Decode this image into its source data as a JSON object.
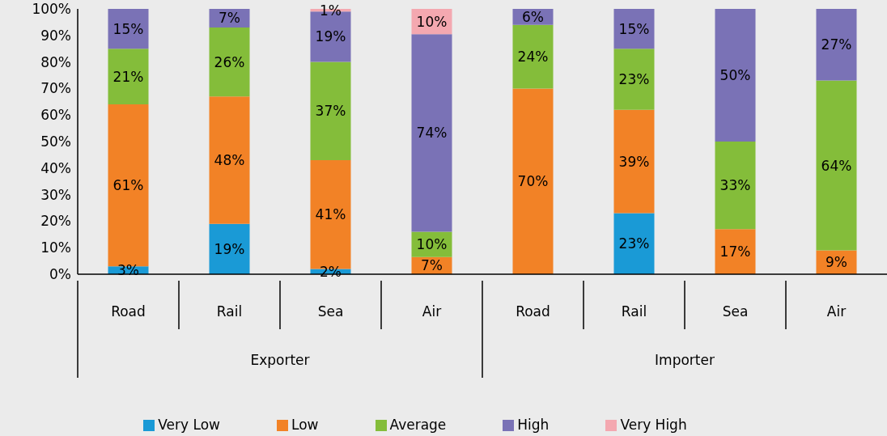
{
  "chart_data": {
    "type": "bar",
    "stacked": true,
    "categories": [
      "Road",
      "Rail",
      "Sea",
      "Air",
      "Road",
      "Rail",
      "Sea",
      "Air"
    ],
    "annotations": [
      "Exporter",
      "Importer"
    ],
    "series": [
      {
        "name": "Very Low",
        "color": "#1a9ad6",
        "values": [
          3,
          19,
          2,
          null,
          null,
          23,
          null,
          null
        ],
        "value_labels": [
          "3%",
          "19%",
          "2%",
          null,
          null,
          "23%",
          null,
          null
        ]
      },
      {
        "name": "Low",
        "color": "#f28226",
        "values": [
          61,
          48,
          41,
          6.5,
          70,
          39,
          17,
          9
        ],
        "value_labels": [
          "61%",
          "48%",
          "41%",
          "7%",
          "70%",
          "39%",
          "17%",
          "9%"
        ]
      },
      {
        "name": "Average",
        "color": "#84bd3a",
        "values": [
          21,
          26,
          37,
          9.5,
          24,
          23,
          33,
          64
        ],
        "value_labels": [
          "21%",
          "26%",
          "37%",
          "10%",
          "24%",
          "23%",
          "33%",
          "64%"
        ]
      },
      {
        "name": "High",
        "color": "#7a72b6",
        "values": [
          15,
          7,
          19,
          74.5,
          6,
          15,
          50,
          27
        ],
        "value_labels": [
          "15%",
          "7%",
          "19%",
          "74%",
          "6%",
          "15%",
          "50%",
          "27%"
        ]
      },
      {
        "name": "Very High",
        "color": "#f4a8b0",
        "values": [
          null,
          null,
          1,
          9.5,
          null,
          null,
          null,
          null
        ],
        "value_labels": [
          null,
          null,
          "1%",
          "10%",
          null,
          null,
          null,
          null
        ]
      }
    ],
    "ylim": [
      0,
      100
    ],
    "yticks": [
      {
        "value": 0,
        "label": "0%"
      },
      {
        "value": 10,
        "label": "10%"
      },
      {
        "value": 20,
        "label": "20%"
      },
      {
        "value": 30,
        "label": "30%"
      },
      {
        "value": 40,
        "label": "40%"
      },
      {
        "value": 50,
        "label": "50%"
      },
      {
        "value": 60,
        "label": "60%"
      },
      {
        "value": 70,
        "label": "70%"
      },
      {
        "value": 80,
        "label": "80%"
      },
      {
        "value": 90,
        "label": "90%"
      },
      {
        "value": 100,
        "label": "100%"
      }
    ],
    "grid": false,
    "legend": "bottom"
  }
}
